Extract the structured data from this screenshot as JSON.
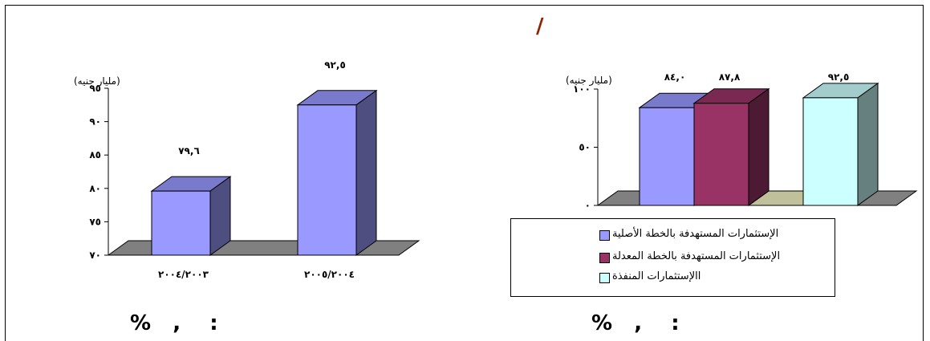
{
  "header": {
    "mark": "/"
  },
  "captions": {
    "left": "%   ,    :",
    "right": "%   ,    :"
  },
  "chart_data": [
    {
      "type": "bar",
      "ylabel": "(مليار جنيه)",
      "ylim": [
        70,
        95
      ],
      "ytick_labels": [
        "٧٠",
        "٧٥",
        "٨٠",
        "٨٥",
        "٩٠",
        "٩٥"
      ],
      "categories": [
        "٢٠٠٤/٢٠٠٣",
        "٢٠٠٥/٢٠٠٤"
      ],
      "values": [
        79.6,
        92.5
      ],
      "value_labels": [
        "٧٩,٦",
        "٩٢,٥"
      ],
      "colors": {
        "front": "#9999ff",
        "top": "#7a7acc",
        "side": "#4e4e80",
        "floor": "#808080"
      }
    },
    {
      "type": "bar",
      "ylabel": "(مليار جنيه)",
      "ylim": [
        0,
        100
      ],
      "ytick_labels": [
        "٠",
        "٥٠",
        "١٠٠"
      ],
      "series": [
        {
          "name": "الإستثمارات المستهدفة بالخطة الأصلية",
          "value": 84.0,
          "value_label": "٨٤,٠",
          "front": "#9999ff",
          "top": "#7a7acc",
          "side": "#4e4e80"
        },
        {
          "name": "الإستثمارات المستهدفة بالخطة المعدلة",
          "value": 87.8,
          "value_label": "٨٧,٨",
          "front": "#993366",
          "top": "#7a2952",
          "side": "#4d1a33"
        },
        {
          "name": "االإستثمارات المنفذة",
          "value": 92.5,
          "value_label": "٩٢,٥",
          "front": "#ccffff",
          "top": "#a3cccc",
          "side": "#668080"
        }
      ],
      "colors": {
        "floor": "#808080",
        "floor_gap": "#c0c09a"
      },
      "legend_position": "bottom"
    }
  ]
}
